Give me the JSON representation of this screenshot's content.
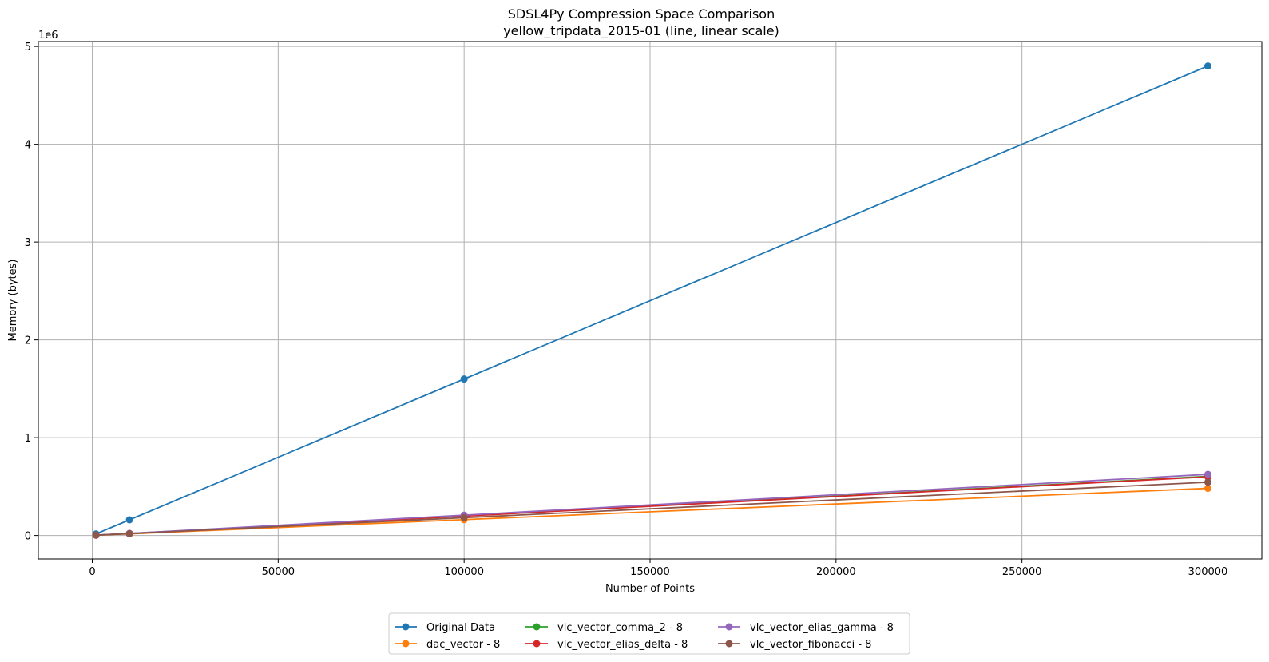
{
  "chart_data": {
    "type": "line",
    "title": "SDSL4Py Compression Space Comparison",
    "subtitle": "yellow_tripdata_2015-01 (line, linear scale)",
    "xlabel": "Number of Points",
    "ylabel": "Memory (bytes)",
    "y_offset_label": "1e6",
    "xlim": [
      -14500,
      314500
    ],
    "ylim": [
      -240000,
      5050000
    ],
    "x_ticks": [
      0,
      50000,
      100000,
      150000,
      200000,
      250000,
      300000
    ],
    "x_tick_labels": [
      "0",
      "50000",
      "100000",
      "150000",
      "200000",
      "250000",
      "300000"
    ],
    "y_ticks": [
      0,
      1000000,
      2000000,
      3000000,
      4000000,
      5000000
    ],
    "y_tick_labels": [
      "0",
      "1",
      "2",
      "3",
      "4",
      "5"
    ],
    "grid": true,
    "legend_position": "bottom-center",
    "x": [
      1000,
      10000,
      100000,
      300000
    ],
    "series": [
      {
        "name": "Original Data",
        "color": "#1f77b4",
        "values": [
          16000,
          160000,
          1600000,
          4800000
        ]
      },
      {
        "name": "dac_vector - 8",
        "color": "#ff7f0e",
        "values": [
          3000,
          16500,
          162000,
          482000
        ]
      },
      {
        "name": "vlc_vector_comma_2 - 8",
        "color": "#2ca02c",
        "values": [
          3400,
          20000,
          200000,
          605000
        ]
      },
      {
        "name": "vlc_vector_elias_delta - 8",
        "color": "#d62728",
        "values": [
          3300,
          20000,
          198000,
          600000
        ]
      },
      {
        "name": "vlc_vector_elias_gamma - 8",
        "color": "#9467bd",
        "values": [
          3500,
          21000,
          208000,
          625000
        ]
      },
      {
        "name": "vlc_vector_fibonacci - 8",
        "color": "#8c564b",
        "values": [
          3200,
          18500,
          182000,
          545000
        ]
      }
    ]
  }
}
